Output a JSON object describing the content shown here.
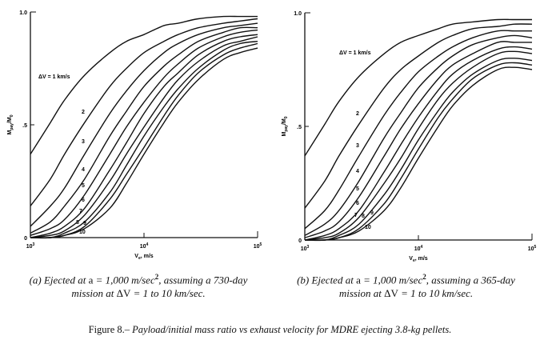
{
  "chart_data": [
    {
      "type": "line",
      "panel": "a",
      "xscale": "log",
      "xlim": [
        1000,
        100000
      ],
      "ylim": [
        0,
        1.0
      ],
      "xlabel": "Ve, m/s",
      "ylabel": "Mpay/M0",
      "xticks": [
        "10^3",
        "10^4",
        "10^5"
      ],
      "yticks": [
        "0",
        ".5",
        "1.0"
      ],
      "x": [
        1000,
        1500,
        2000,
        3000,
        5000,
        7000,
        10000,
        15000,
        20000,
        30000,
        50000,
        70000,
        100000
      ],
      "series": [
        {
          "name": "ΔV = 1 km/s",
          "label": "ΔV = 1 km/s",
          "values": [
            0.37,
            0.51,
            0.61,
            0.72,
            0.82,
            0.87,
            0.9,
            0.94,
            0.95,
            0.97,
            0.98,
            0.98,
            0.98
          ]
        },
        {
          "name": "2",
          "label": "2",
          "values": [
            0.14,
            0.26,
            0.37,
            0.51,
            0.67,
            0.75,
            0.82,
            0.87,
            0.9,
            0.93,
            0.95,
            0.96,
            0.97
          ]
        },
        {
          "name": "3",
          "label": "3",
          "values": [
            0.05,
            0.14,
            0.22,
            0.37,
            0.55,
            0.65,
            0.74,
            0.82,
            0.86,
            0.9,
            0.93,
            0.94,
            0.95
          ]
        },
        {
          "name": "4",
          "label": "4",
          "values": [
            0.02,
            0.07,
            0.14,
            0.26,
            0.45,
            0.56,
            0.67,
            0.76,
            0.81,
            0.87,
            0.91,
            0.93,
            0.93
          ]
        },
        {
          "name": "5",
          "label": "5",
          "values": [
            0.01,
            0.04,
            0.08,
            0.19,
            0.37,
            0.49,
            0.6,
            0.71,
            0.77,
            0.84,
            0.89,
            0.91,
            0.92
          ]
        },
        {
          "name": "6",
          "label": "6",
          "values": [
            0.0,
            0.02,
            0.05,
            0.13,
            0.3,
            0.42,
            0.55,
            0.67,
            0.73,
            0.81,
            0.87,
            0.89,
            0.9
          ]
        },
        {
          "name": "7",
          "label": "7",
          "values": [
            0.0,
            0.01,
            0.03,
            0.1,
            0.25,
            0.37,
            0.49,
            0.62,
            0.7,
            0.78,
            0.85,
            0.87,
            0.89
          ]
        },
        {
          "name": "8",
          "label": "8",
          "values": [
            0.0,
            0.0,
            0.02,
            0.07,
            0.2,
            0.32,
            0.45,
            0.58,
            0.66,
            0.75,
            0.83,
            0.86,
            0.87
          ]
        },
        {
          "name": "9",
          "label": "9",
          "values": [
            0.0,
            0.0,
            0.01,
            0.05,
            0.17,
            0.28,
            0.4,
            0.54,
            0.63,
            0.73,
            0.81,
            0.84,
            0.86
          ]
        },
        {
          "name": "10",
          "label": "10",
          "values": [
            0.0,
            0.0,
            0.01,
            0.04,
            0.13,
            0.24,
            0.37,
            0.51,
            0.6,
            0.7,
            0.79,
            0.82,
            0.84
          ]
        }
      ],
      "caption": {
        "line1_pre": "(a) Ejected at ",
        "line1_a": "a",
        "line1_mid": " = 1,000 m/sec",
        "line1_sup": "2",
        "line1_post": ", assuming a 730-day",
        "line2_pre": "mission at ",
        "line2_dv": "ΔV",
        "line2_post": " = 1 to 10 km/sec."
      }
    },
    {
      "type": "line",
      "panel": "b",
      "xscale": "log",
      "xlim": [
        1000,
        100000
      ],
      "ylim": [
        0,
        1.0
      ],
      "xlabel": "Ve, m/s",
      "ylabel": "Mpay/M0",
      "xticks": [
        "10^3",
        "10^4",
        "10^5"
      ],
      "yticks": [
        "0",
        ".5",
        "1.0"
      ],
      "x": [
        1000,
        1500,
        2000,
        3000,
        5000,
        7000,
        10000,
        15000,
        20000,
        30000,
        50000,
        70000,
        100000
      ],
      "series": [
        {
          "name": "ΔV = 1 km/s",
          "label": "ΔV = 1 km/s",
          "values": [
            0.37,
            0.51,
            0.61,
            0.72,
            0.82,
            0.87,
            0.9,
            0.93,
            0.95,
            0.96,
            0.97,
            0.97,
            0.97
          ]
        },
        {
          "name": "2",
          "label": "2",
          "values": [
            0.14,
            0.26,
            0.37,
            0.51,
            0.67,
            0.75,
            0.81,
            0.87,
            0.9,
            0.93,
            0.94,
            0.95,
            0.95
          ]
        },
        {
          "name": "3",
          "label": "3",
          "values": [
            0.05,
            0.13,
            0.22,
            0.37,
            0.55,
            0.65,
            0.74,
            0.81,
            0.85,
            0.89,
            0.92,
            0.92,
            0.92
          ]
        },
        {
          "name": "4",
          "label": "4",
          "values": [
            0.02,
            0.07,
            0.13,
            0.26,
            0.45,
            0.56,
            0.67,
            0.76,
            0.81,
            0.86,
            0.89,
            0.9,
            0.89
          ]
        },
        {
          "name": "5",
          "label": "5",
          "values": [
            0.01,
            0.04,
            0.08,
            0.19,
            0.37,
            0.49,
            0.6,
            0.71,
            0.77,
            0.82,
            0.87,
            0.87,
            0.87
          ]
        },
        {
          "name": "6",
          "label": "6",
          "values": [
            0.0,
            0.02,
            0.05,
            0.13,
            0.3,
            0.42,
            0.54,
            0.66,
            0.73,
            0.79,
            0.84,
            0.85,
            0.84
          ]
        },
        {
          "name": "7",
          "label": "7",
          "values": [
            0.0,
            0.01,
            0.03,
            0.1,
            0.25,
            0.36,
            0.49,
            0.62,
            0.69,
            0.76,
            0.82,
            0.83,
            0.82
          ]
        },
        {
          "name": "8",
          "label": "8",
          "values": [
            0.0,
            0.0,
            0.02,
            0.07,
            0.2,
            0.31,
            0.44,
            0.57,
            0.65,
            0.73,
            0.79,
            0.8,
            0.79
          ]
        },
        {
          "name": "9",
          "label": "9",
          "values": [
            0.0,
            0.0,
            0.01,
            0.05,
            0.16,
            0.27,
            0.4,
            0.54,
            0.62,
            0.71,
            0.77,
            0.78,
            0.77
          ]
        },
        {
          "name": "10",
          "label": "10",
          "values": [
            0.0,
            0.0,
            0.01,
            0.04,
            0.13,
            0.23,
            0.36,
            0.5,
            0.59,
            0.68,
            0.75,
            0.76,
            0.75
          ]
        }
      ],
      "caption": {
        "line1_pre": "(b) Ejected at ",
        "line1_a": "a",
        "line1_mid": " = 1,000 m/sec",
        "line1_sup": "2",
        "line1_post": ", assuming a 365-day",
        "line2_pre": "mission at ",
        "line2_dv": "ΔV",
        "line2_post": " = 1 to 10 km/sec."
      }
    }
  ],
  "figure": {
    "number": "Figure 8.–",
    "title": " Payload/initial mass ratio vs exhaust velocity for MDRE ejecting 3.8-kg pellets."
  },
  "axis_text": {
    "x_main": "V",
    "x_sub": "e",
    "x_unit": ", m/s",
    "y_main1": "M",
    "y_sub1": "pay",
    "y_main2": "/M",
    "y_sub2": "0",
    "tick_base": "10",
    "exp3": "3",
    "exp4": "4",
    "exp5": "5"
  }
}
